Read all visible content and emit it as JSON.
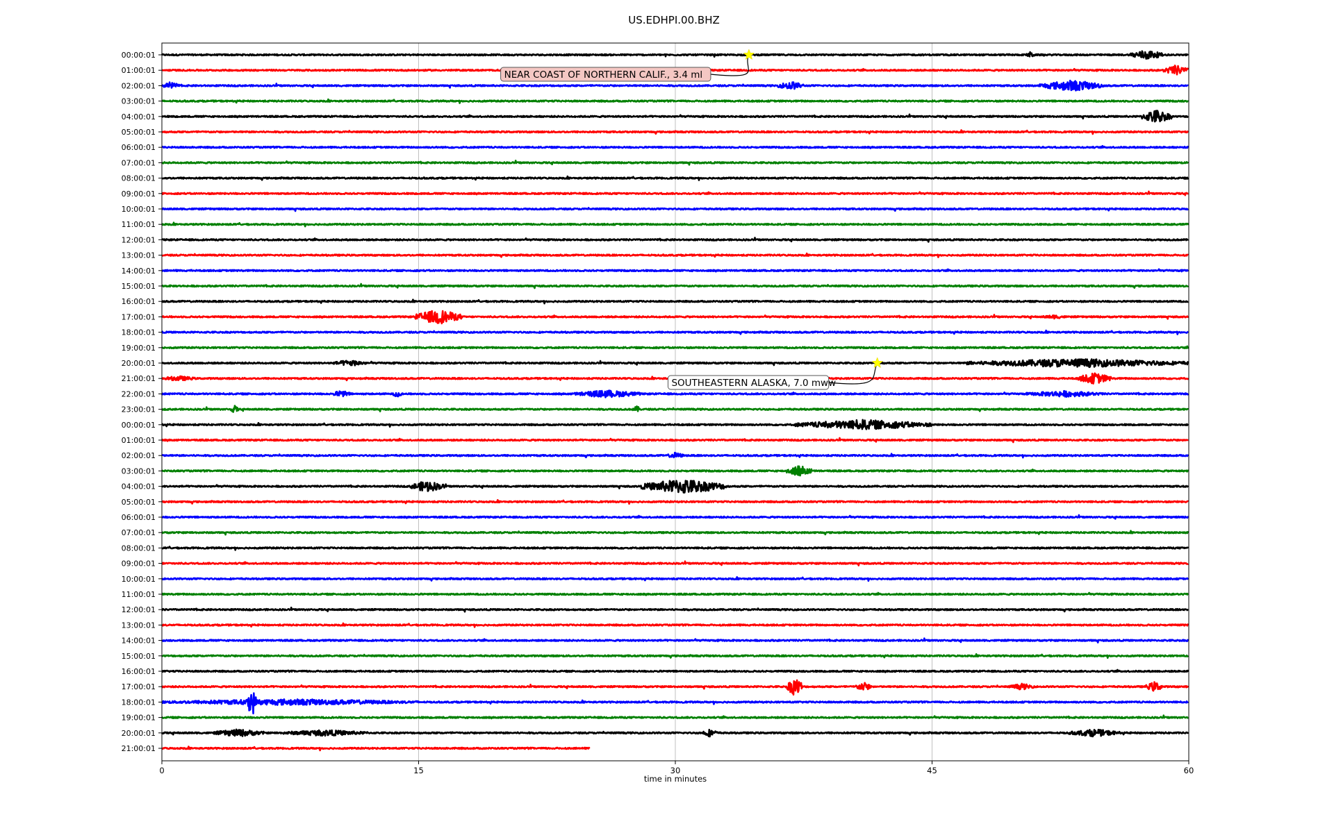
{
  "chart_data": {
    "type": "line",
    "title": "US.EDHPI.00.BHZ",
    "xlabel": "time in minutes",
    "ylabel": "",
    "xlim": [
      0,
      60
    ],
    "xticks": [
      "0",
      "15",
      "30",
      "45",
      "60"
    ],
    "grid": "vertical",
    "row_labels": [
      "00:00:01",
      "01:00:01",
      "02:00:01",
      "03:00:01",
      "04:00:01",
      "05:00:01",
      "06:00:01",
      "07:00:01",
      "08:00:01",
      "09:00:01",
      "10:00:01",
      "11:00:01",
      "12:00:01",
      "13:00:01",
      "14:00:01",
      "15:00:01",
      "16:00:01",
      "17:00:01",
      "18:00:01",
      "19:00:01",
      "20:00:01",
      "21:00:01",
      "22:00:01",
      "23:00:01",
      "00:00:01",
      "01:00:01",
      "02:00:01",
      "03:00:01",
      "04:00:01",
      "05:00:01",
      "06:00:01",
      "07:00:01",
      "08:00:01",
      "09:00:01",
      "10:00:01",
      "11:00:01",
      "12:00:01",
      "13:00:01",
      "14:00:01",
      "15:00:01",
      "16:00:01",
      "17:00:01",
      "18:00:01",
      "19:00:01",
      "20:00:01",
      "21:00:01"
    ],
    "trace_colors": [
      "#000000",
      "#ff0000",
      "#0000ff",
      "#008000"
    ],
    "last_row_end_minute": 25,
    "bursts": [
      {
        "row": 0,
        "start": 56.5,
        "end": 58.5,
        "amp": 0.8
      },
      {
        "row": 0,
        "start": 50.5,
        "end": 51,
        "amp": 0.5
      },
      {
        "row": 1,
        "start": 58.5,
        "end": 60,
        "amp": 0.8
      },
      {
        "row": 2,
        "start": 0,
        "end": 1,
        "amp": 0.6
      },
      {
        "row": 2,
        "start": 36,
        "end": 37.5,
        "amp": 0.7
      },
      {
        "row": 2,
        "start": 51.3,
        "end": 55,
        "amp": 0.9
      },
      {
        "row": 4,
        "start": 57.2,
        "end": 59,
        "amp": 1.1
      },
      {
        "row": 17,
        "start": 14.8,
        "end": 17.5,
        "amp": 1.2
      },
      {
        "row": 17,
        "start": 51.3,
        "end": 53,
        "amp": 0.3
      },
      {
        "row": 20,
        "start": 10,
        "end": 12,
        "amp": 0.5
      },
      {
        "row": 20,
        "start": 47,
        "end": 60,
        "amp": 0.7
      },
      {
        "row": 21,
        "start": 0,
        "end": 2,
        "amp": 0.4
      },
      {
        "row": 21,
        "start": 53.5,
        "end": 55.5,
        "amp": 0.9
      },
      {
        "row": 22,
        "start": 10,
        "end": 11,
        "amp": 0.6
      },
      {
        "row": 22,
        "start": 13.5,
        "end": 14,
        "amp": 0.6
      },
      {
        "row": 22,
        "start": 24,
        "end": 28,
        "amp": 0.6
      },
      {
        "row": 22,
        "start": 50.5,
        "end": 55,
        "amp": 0.5
      },
      {
        "row": 23,
        "start": 4,
        "end": 4.5,
        "amp": 0.6
      },
      {
        "row": 23,
        "start": 27.5,
        "end": 28,
        "amp": 0.5
      },
      {
        "row": 24,
        "start": 37,
        "end": 45,
        "amp": 0.8
      },
      {
        "row": 26,
        "start": 29.5,
        "end": 30.5,
        "amp": 0.5
      },
      {
        "row": 27,
        "start": 36.5,
        "end": 38,
        "amp": 0.9
      },
      {
        "row": 28,
        "start": 14.5,
        "end": 16.5,
        "amp": 0.9
      },
      {
        "row": 28,
        "start": 28,
        "end": 33,
        "amp": 1.2
      },
      {
        "row": 41,
        "start": 36.5,
        "end": 37.5,
        "amp": 1.5
      },
      {
        "row": 41,
        "start": 40.5,
        "end": 41.5,
        "amp": 0.7
      },
      {
        "row": 41,
        "start": 49.5,
        "end": 51,
        "amp": 0.5
      },
      {
        "row": 41,
        "start": 57.5,
        "end": 58.5,
        "amp": 0.8
      },
      {
        "row": 42,
        "start": 0,
        "end": 15,
        "amp": 0.5
      },
      {
        "row": 42,
        "start": 5,
        "end": 5.5,
        "amp": 2.5
      },
      {
        "row": 44,
        "start": 3,
        "end": 6,
        "amp": 0.6
      },
      {
        "row": 44,
        "start": 7,
        "end": 12,
        "amp": 0.5
      },
      {
        "row": 44,
        "start": 31.5,
        "end": 32.5,
        "amp": 0.6
      },
      {
        "row": 44,
        "start": 53,
        "end": 56,
        "amp": 0.6
      }
    ],
    "annotations": [
      {
        "text": "NEAR COAST OF NORTHERN CALIF., 3.4 ml",
        "row": 0,
        "minute": 34.3,
        "box_color": "#f4c7c3"
      },
      {
        "text": "SOUTHEASTERN ALASKA, 7.0 mww",
        "row": 20,
        "minute": 41.8,
        "box_color": "#ffffff"
      }
    ],
    "marker_color": "#ffff00"
  }
}
